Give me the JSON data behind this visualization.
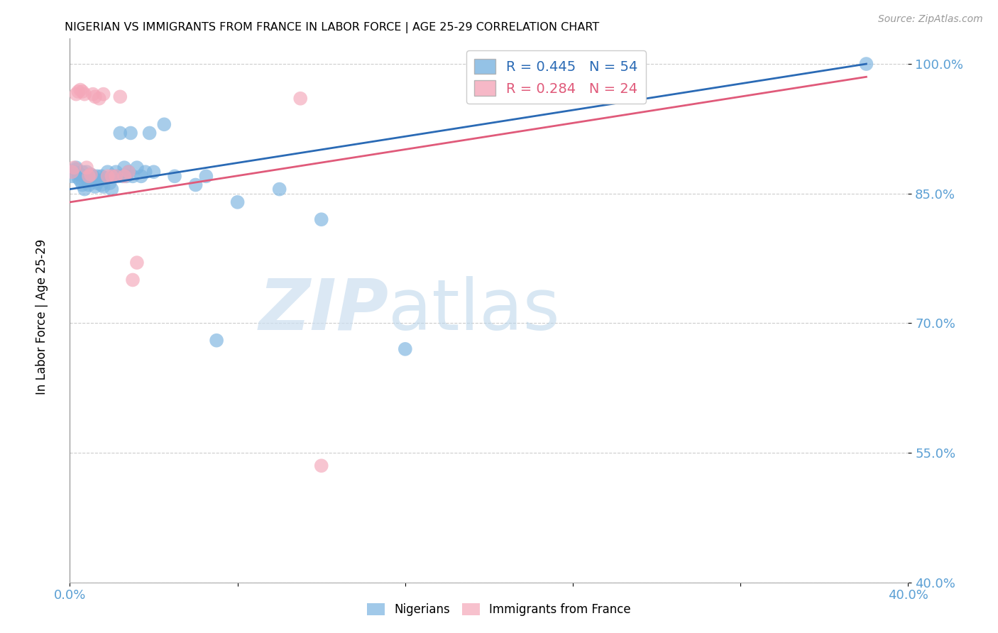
{
  "title": "NIGERIAN VS IMMIGRANTS FROM FRANCE IN LABOR FORCE | AGE 25-29 CORRELATION CHART",
  "source": "Source: ZipAtlas.com",
  "ylabel": "In Labor Force | Age 25-29",
  "yticks": [
    0.4,
    0.55,
    0.7,
    0.85,
    1.0
  ],
  "ytick_labels": [
    "40.0%",
    "55.0%",
    "70.0%",
    "85.0%",
    "100.0%"
  ],
  "xmin": 0.0,
  "xmax": 0.4,
  "ymin": 0.4,
  "ymax": 1.03,
  "blue_R": 0.445,
  "blue_N": 54,
  "pink_R": 0.284,
  "pink_N": 24,
  "legend_label_blue": "Nigerians",
  "legend_label_pink": "Immigrants from France",
  "blue_color": "#7ab3e0",
  "pink_color": "#f4a7b9",
  "blue_line_color": "#2a6ab5",
  "pink_line_color": "#e05a7a",
  "blue_x": [
    0.001,
    0.002,
    0.003,
    0.003,
    0.004,
    0.004,
    0.005,
    0.005,
    0.006,
    0.006,
    0.007,
    0.007,
    0.008,
    0.008,
    0.009,
    0.01,
    0.01,
    0.011,
    0.012,
    0.013,
    0.013,
    0.014,
    0.015,
    0.015,
    0.016,
    0.017,
    0.018,
    0.019,
    0.02,
    0.021,
    0.022,
    0.023,
    0.024,
    0.025,
    0.026,
    0.027,
    0.028,
    0.029,
    0.03,
    0.032,
    0.034,
    0.036,
    0.038,
    0.04,
    0.045,
    0.05,
    0.06,
    0.065,
    0.07,
    0.08,
    0.1,
    0.12,
    0.16,
    0.38
  ],
  "blue_y": [
    0.87,
    0.875,
    0.878,
    0.88,
    0.868,
    0.873,
    0.872,
    0.865,
    0.86,
    0.875,
    0.87,
    0.855,
    0.868,
    0.875,
    0.86,
    0.872,
    0.865,
    0.87,
    0.858,
    0.862,
    0.87,
    0.865,
    0.86,
    0.87,
    0.858,
    0.868,
    0.875,
    0.862,
    0.855,
    0.87,
    0.875,
    0.87,
    0.92,
    0.87,
    0.88,
    0.87,
    0.875,
    0.92,
    0.87,
    0.88,
    0.87,
    0.875,
    0.92,
    0.875,
    0.93,
    0.87,
    0.86,
    0.87,
    0.68,
    0.84,
    0.855,
    0.82,
    0.67,
    1.0
  ],
  "pink_x": [
    0.001,
    0.002,
    0.003,
    0.004,
    0.005,
    0.006,
    0.007,
    0.008,
    0.009,
    0.01,
    0.011,
    0.012,
    0.014,
    0.016,
    0.018,
    0.02,
    0.022,
    0.024,
    0.026,
    0.028,
    0.03,
    0.032,
    0.11,
    0.12
  ],
  "pink_y": [
    0.875,
    0.88,
    0.965,
    0.968,
    0.97,
    0.968,
    0.965,
    0.88,
    0.87,
    0.872,
    0.965,
    0.962,
    0.96,
    0.965,
    0.87,
    0.87,
    0.87,
    0.962,
    0.87,
    0.875,
    0.75,
    0.77,
    0.96,
    0.535
  ]
}
